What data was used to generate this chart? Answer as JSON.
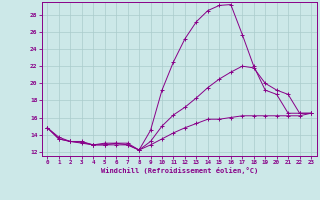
{
  "xlabel": "Windchill (Refroidissement éolien,°C)",
  "bg_color": "#cce8e8",
  "line_color": "#880088",
  "grid_color": "#aacccc",
  "xlim": [
    -0.5,
    23.5
  ],
  "ylim": [
    11.5,
    29.5
  ],
  "yticks": [
    12,
    14,
    16,
    18,
    20,
    22,
    24,
    26,
    28
  ],
  "xticks": [
    0,
    1,
    2,
    3,
    4,
    5,
    6,
    7,
    8,
    9,
    10,
    11,
    12,
    13,
    14,
    15,
    16,
    17,
    18,
    19,
    20,
    21,
    22,
    23
  ],
  "series": [
    {
      "x": [
        0,
        1,
        2,
        3,
        4,
        5,
        6,
        7,
        8,
        9,
        10,
        11,
        12,
        13,
        14,
        15,
        16,
        17,
        18,
        19,
        20,
        21,
        22,
        23
      ],
      "y": [
        14.8,
        13.7,
        13.2,
        13.2,
        12.8,
        13.0,
        13.0,
        13.0,
        12.2,
        14.5,
        19.2,
        22.5,
        25.2,
        27.2,
        28.5,
        29.1,
        29.2,
        25.7,
        22.0,
        19.2,
        18.7,
        16.5,
        16.5,
        16.5
      ]
    },
    {
      "x": [
        0,
        1,
        2,
        3,
        4,
        5,
        6,
        7,
        8,
        9,
        10,
        11,
        12,
        13,
        14,
        15,
        16,
        17,
        18,
        19,
        20,
        21,
        22,
        23
      ],
      "y": [
        14.8,
        13.5,
        13.2,
        13.1,
        12.8,
        12.8,
        13.0,
        12.8,
        12.2,
        13.2,
        15.0,
        16.3,
        17.2,
        18.3,
        19.5,
        20.5,
        21.3,
        22.0,
        21.8,
        20.0,
        19.2,
        18.7,
        16.5,
        16.5
      ]
    },
    {
      "x": [
        0,
        1,
        2,
        3,
        4,
        5,
        6,
        7,
        8,
        9,
        10,
        11,
        12,
        13,
        14,
        15,
        16,
        17,
        18,
        19,
        20,
        21,
        22,
        23
      ],
      "y": [
        14.8,
        13.5,
        13.2,
        13.0,
        12.8,
        12.8,
        12.8,
        12.8,
        12.2,
        12.8,
        13.5,
        14.2,
        14.8,
        15.3,
        15.8,
        15.8,
        16.0,
        16.2,
        16.2,
        16.2,
        16.2,
        16.2,
        16.2,
        16.5
      ]
    }
  ]
}
